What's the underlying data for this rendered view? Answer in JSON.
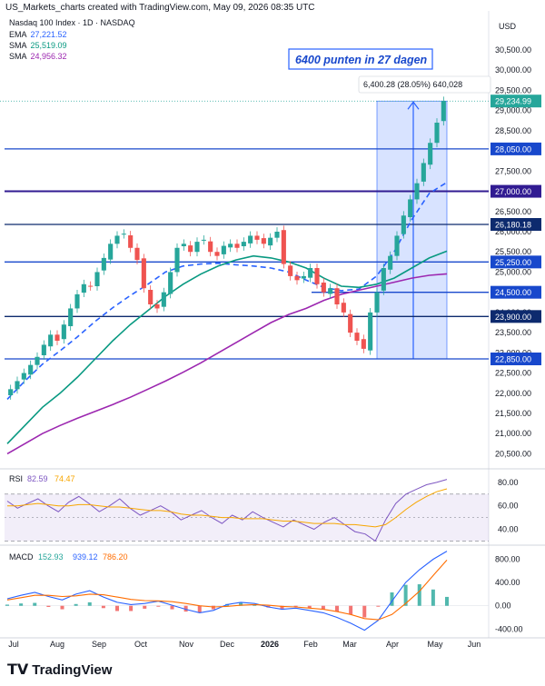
{
  "header": {
    "attribution": "US_Markets_charts created with TradingView.com, May 09, 2026 08:35 UTC",
    "symbol": "Nasdaq 100 Index · 1D · NASDAQ"
  },
  "legend": [
    {
      "name": "EMA",
      "value": "27,221.52",
      "color": "#2962ff"
    },
    {
      "name": "SMA",
      "value": "25,519.09",
      "color": "#089981"
    },
    {
      "name": "SMA",
      "value": "24,956.32",
      "color": "#9c27b0"
    }
  ],
  "brand": {
    "name": "TradingView"
  },
  "chart_data": [
    {
      "type": "candlestick",
      "currency": "USD",
      "y_ticks": [
        "30,500.00",
        "30,000.00",
        "29,500.00",
        "29,000.00",
        "28,500.00",
        "28,000.00",
        "27,500.00",
        "27,000.00",
        "26,500.00",
        "26,000.00",
        "25,500.00",
        "25,000.00",
        "24,500.00",
        "24,000.00",
        "23,500.00",
        "23,000.00",
        "22,500.00",
        "22,000.00",
        "21,500.00",
        "21,000.00",
        "20,500.00"
      ],
      "ylim": [
        20150,
        31400
      ],
      "x_ticks": [
        "Jul",
        "Aug",
        "Sep",
        "Oct",
        "Nov",
        "Dec",
        "2026",
        "Feb",
        "Mar",
        "Apr",
        "May",
        "Jun"
      ],
      "last_price": "29,234.99",
      "last_price_value": 29234.99,
      "horizontal_levels": [
        {
          "value": 28050,
          "label": "28,050.00",
          "color": "#1848cc"
        },
        {
          "value": 27000,
          "label": "27,000.00",
          "color": "#311b92"
        },
        {
          "value": 26180.18,
          "label": "26,180.18",
          "color": "#0d2a6e"
        },
        {
          "value": 25250,
          "label": "25,250.00",
          "color": "#1848cc"
        },
        {
          "value": 24500,
          "label": "24,500.00",
          "color": "#1848cc"
        },
        {
          "value": 23900,
          "label": "23,900.00",
          "color": "#0d2a6e"
        },
        {
          "value": 22850,
          "label": "22,850.00",
          "color": "#1848cc"
        }
      ],
      "annotation_title": "6400 punten in  27 dagen",
      "measure_label": "6,400.28 (28.05%) 640,028",
      "measure_range": [
        22850,
        29235
      ],
      "series": [
        {
          "name": "EMA",
          "values": [
            21850,
            22300,
            22720,
            23050,
            23400,
            23780,
            24120,
            24420,
            24700,
            25000,
            25150,
            25200,
            25220,
            25180,
            25150,
            25100,
            25000,
            24800,
            24620,
            24540,
            24580,
            24900,
            25500,
            26300,
            26950,
            27222
          ]
        },
        {
          "name": "SMA",
          "values": [
            20750,
            21200,
            21650,
            22000,
            22400,
            22850,
            23300,
            23700,
            24050,
            24400,
            24700,
            24950,
            25150,
            25300,
            25400,
            25350,
            25250,
            25100,
            24850,
            24650,
            24620,
            24700,
            24850,
            25100,
            25350,
            25519
          ]
        },
        {
          "name": "SMA",
          "values": [
            20500,
            20750,
            21000,
            21200,
            21380,
            21550,
            21720,
            21900,
            22100,
            22300,
            22520,
            22750,
            23000,
            23250,
            23500,
            23750,
            23950,
            24100,
            24300,
            24450,
            24550,
            24650,
            24750,
            24850,
            24920,
            24956
          ]
        }
      ],
      "closes": [
        22100,
        22300,
        22500,
        22700,
        22900,
        23200,
        23450,
        23300,
        23700,
        24100,
        24450,
        24700,
        24650,
        25000,
        25350,
        25700,
        25900,
        25950,
        25600,
        25300,
        24600,
        24200,
        24100,
        24500,
        25000,
        25600,
        25700,
        25500,
        25750,
        25800,
        25500,
        25400,
        25650,
        25700,
        25600,
        25750,
        25900,
        25800,
        25700,
        25850,
        26000,
        25200,
        24900,
        24800,
        24900,
        25100,
        24700,
        24500,
        24600,
        24200,
        24000,
        23500,
        23300,
        23100,
        24000,
        24500,
        25100,
        25400,
        25900,
        26400,
        26800,
        27200,
        27700,
        28200,
        28700,
        29235
      ]
    },
    {
      "type": "line",
      "indicator": "RSI",
      "values_label": [
        "82.59",
        "74.47"
      ],
      "y_ticks": [
        "80.00",
        "60.00",
        "40.00"
      ],
      "ylim": [
        28,
        90
      ],
      "band": [
        30,
        70
      ],
      "series": [
        {
          "name": "RSI",
          "values": [
            64,
            58,
            62,
            66,
            60,
            55,
            63,
            68,
            62,
            55,
            60,
            66,
            58,
            52,
            56,
            60,
            55,
            48,
            52,
            56,
            50,
            45,
            52,
            48,
            55,
            50,
            46,
            42,
            48,
            44,
            40,
            46,
            50,
            44,
            38,
            36,
            30,
            48,
            62,
            70,
            74,
            78,
            80,
            82.59
          ]
        },
        {
          "name": "RSI-MA",
          "values": [
            60,
            60,
            61,
            62,
            61,
            60,
            60,
            61,
            61,
            60,
            59,
            59,
            58,
            57,
            56,
            56,
            55,
            53,
            52,
            52,
            51,
            50,
            50,
            49,
            49,
            49,
            48,
            47,
            47,
            46,
            45,
            45,
            45,
            44,
            44,
            43,
            42,
            44,
            50,
            57,
            63,
            68,
            72,
            74.47
          ]
        }
      ]
    },
    {
      "type": "line",
      "indicator": "MACD",
      "values_label": [
        "152.93",
        "939.12",
        "786.20"
      ],
      "y_ticks": [
        "800.00",
        "400.00",
        "0.00",
        "-400.00"
      ],
      "ylim": [
        -520,
        980
      ],
      "series": [
        {
          "name": "MACD",
          "values": [
            120,
            180,
            230,
            160,
            100,
            200,
            260,
            150,
            60,
            20,
            40,
            80,
            10,
            -60,
            -120,
            -80,
            20,
            60,
            40,
            -20,
            -60,
            -40,
            -80,
            -120,
            -200,
            -300,
            -420,
            -250,
            80,
            400,
            620,
            800,
            939
          ]
        },
        {
          "name": "Signal",
          "values": [
            100,
            140,
            180,
            180,
            160,
            170,
            200,
            190,
            150,
            110,
            90,
            85,
            70,
            40,
            0,
            -20,
            -10,
            10,
            20,
            10,
            -10,
            -20,
            -40,
            -60,
            -100,
            -150,
            -220,
            -240,
            -150,
            40,
            250,
            520,
            786
          ]
        }
      ]
    }
  ]
}
